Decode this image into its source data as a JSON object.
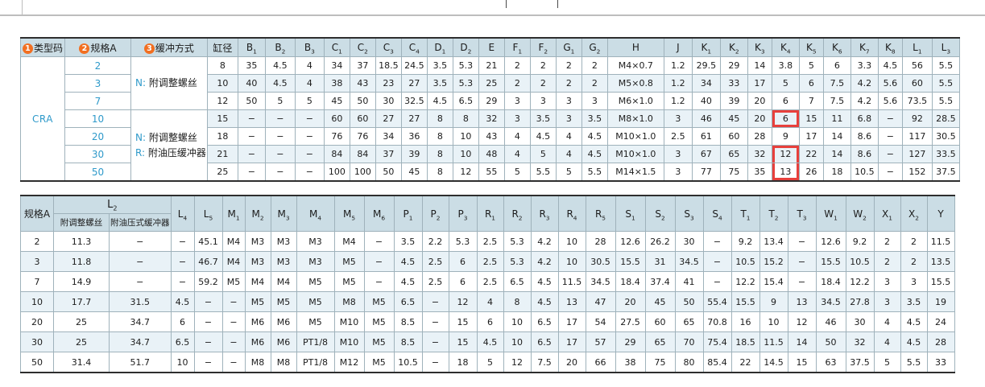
{
  "colors": {
    "border": "#9fb2bb",
    "headbg": "#cbdde5",
    "stripe": "#e9f2f7",
    "blue": "#2f9aca",
    "red": "#e8403c",
    "orange": "#f26f21"
  },
  "table1": {
    "legend": [
      {
        "num": "1",
        "label": "类型码"
      },
      {
        "num": "2",
        "label": "规格A"
      },
      {
        "num": "3",
        "label": "缓冲方式"
      }
    ],
    "bore_label": "缸径",
    "columns": [
      "B₁",
      "B₂",
      "B₃",
      "C₁",
      "C₂",
      "C₃",
      "C₄",
      "D₁",
      "D₂",
      "E",
      "F₁",
      "F₂",
      "G₁",
      "G₂",
      "H",
      "J",
      "K₁",
      "K₂",
      "K₃",
      "K₄",
      "K₅",
      "K₆",
      "K₇",
      "K₈",
      "L₁",
      "L₃"
    ],
    "type_code": "CRA",
    "buffer_groups": [
      {
        "span": 3,
        "lines": [
          {
            "prefix": "N:",
            "label": "附调整螺丝"
          }
        ]
      },
      {
        "span": 4,
        "lines": [
          {
            "prefix": "N:",
            "label": "附调整螺丝"
          },
          {
            "prefix": "R:",
            "label": "附油压缓冲器"
          }
        ]
      }
    ],
    "rows": [
      {
        "spec": "2",
        "bore": "8",
        "values": [
          "35",
          "4.5",
          "4",
          "34",
          "37",
          "18.5",
          "24.5",
          "3.5",
          "5.3",
          "21",
          "2",
          "2",
          "2",
          "2",
          "M4×0.7",
          "1.2",
          "29.5",
          "29",
          "14",
          "3.8",
          "5",
          "6",
          "3.3",
          "4.5",
          "56",
          "5.5"
        ]
      },
      {
        "spec": "3",
        "bore": "10",
        "values": [
          "40",
          "4.5",
          "4",
          "38",
          "43",
          "23",
          "27",
          "3.5",
          "5.3",
          "25",
          "2",
          "2",
          "2",
          "2",
          "M5×0.8",
          "1.2",
          "34",
          "33",
          "17",
          "5",
          "6",
          "7.5",
          "4.2",
          "5.6",
          "60",
          "5.5"
        ]
      },
      {
        "spec": "7",
        "bore": "12",
        "values": [
          "50",
          "5",
          "5",
          "45",
          "50",
          "30",
          "32.5",
          "4.5",
          "6.5",
          "29",
          "3",
          "3",
          "3",
          "3",
          "M6×1.0",
          "1.2",
          "40",
          "39",
          "20",
          "6",
          "7",
          "7.5",
          "4.2",
          "5.6",
          "73.5",
          "5.5"
        ]
      },
      {
        "spec": "10",
        "bore": "15",
        "values": [
          "−",
          "−",
          "−",
          "60",
          "60",
          "27",
          "27",
          "8",
          "8",
          "32",
          "3",
          "3.5",
          "3",
          "3.5",
          "M8×1.0",
          "3",
          "46",
          "45",
          "20",
          "6",
          "15",
          "11",
          "6.8",
          "−",
          "92",
          "28.5"
        ]
      },
      {
        "spec": "20",
        "bore": "18",
        "values": [
          "−",
          "−",
          "−",
          "76",
          "76",
          "34",
          "36",
          "8",
          "10",
          "43",
          "4",
          "4.5",
          "4",
          "4.5",
          "M10×1.0",
          "2.5",
          "61",
          "60",
          "28",
          "9",
          "17",
          "14",
          "8.6",
          "−",
          "117",
          "30.5"
        ]
      },
      {
        "spec": "30",
        "bore": "21",
        "values": [
          "−",
          "−",
          "−",
          "84",
          "84",
          "37",
          "39",
          "8",
          "10",
          "48",
          "4",
          "5",
          "4",
          "4.5",
          "M10×1.0",
          "3",
          "67",
          "65",
          "32",
          "12",
          "22",
          "14",
          "8.6",
          "−",
          "127",
          "33.5"
        ]
      },
      {
        "spec": "50",
        "bore": "25",
        "values": [
          "−",
          "−",
          "−",
          "100",
          "100",
          "50",
          "45",
          "8",
          "12",
          "55",
          "5",
          "5.5",
          "5",
          "5.5",
          "M14×1.5",
          "3",
          "77",
          "75",
          "35",
          "13",
          "26",
          "18",
          "10.5",
          "−",
          "152",
          "37.5"
        ]
      }
    ],
    "highlights": [
      {
        "column": "K₄",
        "spec": "10",
        "box": "full"
      },
      {
        "column": "K₄",
        "spec": "30",
        "box": "top"
      },
      {
        "column": "K₄",
        "spec": "50",
        "box": "bottom"
      }
    ]
  },
  "table2": {
    "spec_label": "规格A",
    "group_label": "L₂",
    "group_sub": [
      "附调整螺丝",
      "附油压式缓冲器"
    ],
    "columns": [
      "L₄",
      "L₅",
      "M₁",
      "M₂",
      "M₃",
      "M₄",
      "M₅",
      "M₆",
      "P₁",
      "P₂",
      "P₃",
      "R₁",
      "R₂",
      "R₃",
      "R₄",
      "R₅",
      "S₁",
      "S₂",
      "S₃",
      "S₄",
      "T₁",
      "T₂",
      "T₃",
      "W₁",
      "W₂",
      "X₁",
      "X₂",
      "Y"
    ],
    "rows": [
      {
        "spec": "2",
        "values": [
          "11.3",
          "−",
          "−",
          "45.1",
          "M4",
          "M3",
          "M3",
          "M3",
          "M4",
          "−",
          "3.5",
          "2.2",
          "5.3",
          "2.5",
          "5.3",
          "4.2",
          "10",
          "28",
          "12.6",
          "26.2",
          "30",
          "−",
          "9.2",
          "13.4",
          "−",
          "12.6",
          "9.2",
          "2",
          "2",
          "11.5"
        ]
      },
      {
        "spec": "3",
        "values": [
          "11.8",
          "−",
          "−",
          "46.7",
          "M4",
          "M3",
          "M3",
          "M3",
          "M5",
          "−",
          "4.5",
          "2.5",
          "6",
          "2.5",
          "5.3",
          "4.2",
          "10",
          "30.5",
          "15.5",
          "31",
          "34.5",
          "−",
          "10.5",
          "15.2",
          "−",
          "15.5",
          "10.5",
          "2",
          "2",
          "13.5"
        ]
      },
      {
        "spec": "7",
        "values": [
          "14.9",
          "−",
          "−",
          "59.2",
          "M5",
          "M4",
          "M4",
          "M5",
          "M5",
          "−",
          "4.5",
          "2.5",
          "6",
          "2.5",
          "6.5",
          "4.5",
          "11.5",
          "34.5",
          "18.4",
          "37.4",
          "41",
          "−",
          "12.2",
          "15.4",
          "−",
          "18.4",
          "12.2",
          "3",
          "3",
          "15.5"
        ]
      },
      {
        "spec": "10",
        "values": [
          "17.7",
          "31.5",
          "4.5",
          "−",
          "−",
          "M5",
          "M5",
          "M5",
          "M8",
          "M5",
          "6.5",
          "−",
          "12",
          "4",
          "8",
          "4.5",
          "13",
          "47",
          "20",
          "45",
          "50",
          "55.4",
          "15.5",
          "9",
          "13",
          "34.5",
          "27.8",
          "3",
          "3.5",
          "19"
        ]
      },
      {
        "spec": "20",
        "values": [
          "25",
          "34.7",
          "6",
          "−",
          "−",
          "M6",
          "M6",
          "M5",
          "M10",
          "M5",
          "8.5",
          "−",
          "15",
          "6",
          "10",
          "6.5",
          "17",
          "54",
          "27.5",
          "60",
          "65",
          "70.8",
          "16",
          "10",
          "12",
          "46",
          "30",
          "4",
          "4.5",
          "24"
        ]
      },
      {
        "spec": "30",
        "values": [
          "25",
          "34.7",
          "6.5",
          "−",
          "−",
          "M6",
          "M6",
          "PT1/8",
          "M10",
          "M5",
          "8.5",
          "−",
          "15",
          "4.5",
          "10",
          "6.5",
          "17",
          "57",
          "29",
          "65",
          "70",
          "75.4",
          "18.5",
          "11.5",
          "14",
          "50",
          "32",
          "4",
          "4.5",
          "28"
        ]
      },
      {
        "spec": "50",
        "values": [
          "31.4",
          "51.7",
          "10",
          "−",
          "−",
          "M8",
          "M8",
          "PT1/8",
          "M12",
          "M5",
          "10.5",
          "−",
          "18",
          "5",
          "12",
          "7.5",
          "20",
          "66",
          "38",
          "75",
          "80",
          "85.4",
          "22",
          "14.5",
          "15",
          "63",
          "37.5",
          "5",
          "5.5",
          "33"
        ]
      }
    ]
  }
}
